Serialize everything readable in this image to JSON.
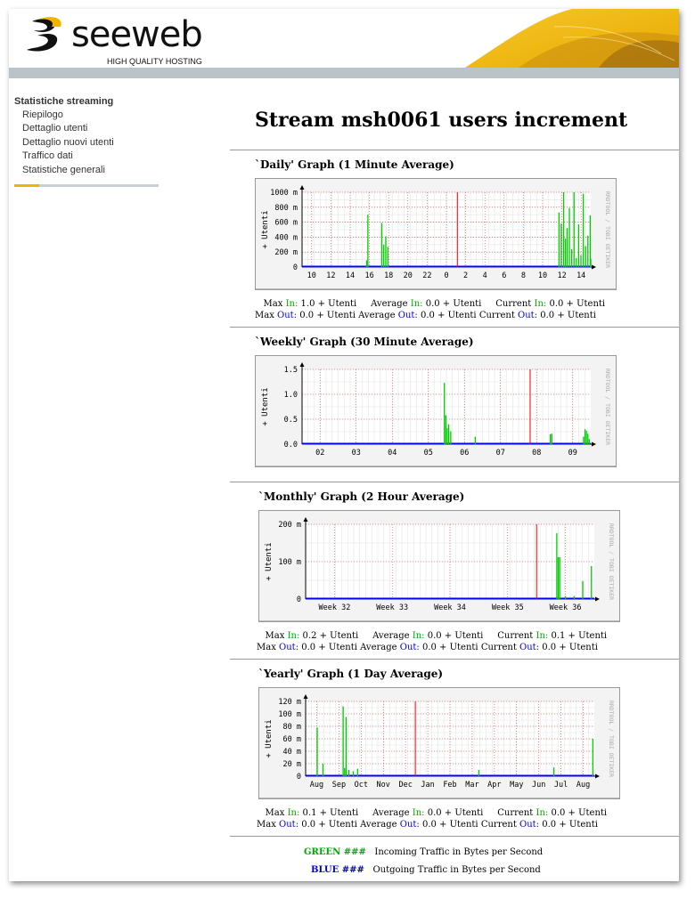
{
  "brand": {
    "name": "seeweb",
    "tagline": "HIGH QUALITY HOSTING"
  },
  "sidebar": {
    "title": "Statistiche streaming",
    "items": [
      {
        "label": "Riepilogo"
      },
      {
        "label": "Dettaglio utenti"
      },
      {
        "label": "Dettaglio nuovi utenti"
      },
      {
        "label": "Traffico dati"
      },
      {
        "label": "Statistiche generali"
      }
    ]
  },
  "page": {
    "title": "Stream msh0061 users increment"
  },
  "graphs": [
    {
      "heading": "`Daily' Graph (1 Minute Average)",
      "ylabel": "+ Utenti",
      "side_label": "RRDTOOL / TOBI OETIKER",
      "y_ticks": [
        "1000 m",
        "800 m",
        "600 m",
        "400 m",
        "200 m",
        "0"
      ],
      "x_ticks": [
        "10",
        "12",
        "14",
        "16",
        "18",
        "20",
        "22",
        "0",
        "2",
        "4",
        "6",
        "8",
        "10",
        "12",
        "14"
      ],
      "stats": {
        "max_label": "Max",
        "avg_label": "Average",
        "cur_label": "Current",
        "in_label": "In:",
        "out_label": "Out:",
        "in": {
          "max": "1.0 + Utenti",
          "avg": "0.0 + Utenti",
          "cur": "0.0 + Utenti"
        },
        "out": {
          "max": "0.0 + Utenti",
          "avg": "0.0 + Utenti",
          "cur": "0.0 + Utenti"
        }
      }
    },
    {
      "heading": "`Weekly' Graph (30 Minute Average)",
      "ylabel": "+ Utenti",
      "side_label": "RRDTOOL / TOBI OETIKER",
      "y_ticks": [
        "1.5",
        "1.0",
        "0.5",
        "0.0"
      ],
      "x_ticks": [
        "02",
        "03",
        "04",
        "05",
        "06",
        "07",
        "08",
        "09"
      ]
    },
    {
      "heading": "`Monthly' Graph (2 Hour Average)",
      "ylabel": "+ Utenti",
      "side_label": "RRDTOOL / TOBI OETIKER",
      "y_ticks": [
        "200 m",
        "100 m",
        "0"
      ],
      "x_ticks": [
        "Week 32",
        "Week 33",
        "Week 34",
        "Week 35",
        "Week 36"
      ],
      "stats": {
        "max_label": "Max",
        "avg_label": "Average",
        "cur_label": "Current",
        "in_label": "In:",
        "out_label": "Out:",
        "in": {
          "max": "0.2 + Utenti",
          "avg": "0.0 + Utenti",
          "cur": "0.1 + Utenti"
        },
        "out": {
          "max": "0.0 + Utenti",
          "avg": "0.0 + Utenti",
          "cur": "0.0 + Utenti"
        }
      }
    },
    {
      "heading": "`Yearly' Graph (1 Day Average)",
      "ylabel": "+ Utenti",
      "side_label": "RRDTOOL / TOBI OETIKER",
      "y_ticks": [
        "120 m",
        "100 m",
        "80 m",
        "60 m",
        "40 m",
        "20 m",
        "0"
      ],
      "x_ticks": [
        "Aug",
        "Sep",
        "Oct",
        "Nov",
        "Dec",
        "Jan",
        "Feb",
        "Mar",
        "Apr",
        "May",
        "Jun",
        "Jul",
        "Aug"
      ],
      "stats": {
        "max_label": "Max",
        "avg_label": "Average",
        "cur_label": "Current",
        "in_label": "In:",
        "out_label": "Out:",
        "in": {
          "max": "0.1 + Utenti",
          "avg": "0.0 + Utenti",
          "cur": "0.0 + Utenti"
        },
        "out": {
          "max": "0.0 + Utenti",
          "avg": "0.0 + Utenti",
          "cur": "0.0 + Utenti"
        }
      }
    }
  ],
  "legend": {
    "green_key": "GREEN ###",
    "green_text": "Incoming Traffic in Bytes per Second",
    "blue_key": "BLUE ###",
    "blue_text": "Outgoing Traffic in Bytes per Second"
  },
  "colors": {
    "in": "#00cc00",
    "out": "#0000ff",
    "now": "#ff0000",
    "accent": "#f0b400"
  },
  "chart_data": [
    {
      "type": "bar",
      "title": "`Daily' Graph (1 Minute Average)",
      "ylabel": "+ Utenti",
      "ylim": [
        0,
        1000
      ],
      "y_unit": "m",
      "x_labels": [
        "10",
        "12",
        "14",
        "16",
        "18",
        "20",
        "22",
        "0",
        "2",
        "4",
        "6",
        "8",
        "10",
        "12",
        "14"
      ],
      "now_x": 0.538,
      "in": [
        [
          0.224,
          90
        ],
        [
          0.228,
          700
        ],
        [
          0.276,
          590
        ],
        [
          0.283,
          300
        ],
        [
          0.29,
          410
        ],
        [
          0.297,
          270
        ],
        [
          0.89,
          730
        ],
        [
          0.898,
          580
        ],
        [
          0.906,
          1000
        ],
        [
          0.912,
          380
        ],
        [
          0.918,
          520
        ],
        [
          0.926,
          790
        ],
        [
          0.934,
          240
        ],
        [
          0.942,
          1000
        ],
        [
          0.95,
          120
        ],
        [
          0.958,
          570
        ],
        [
          0.966,
          160
        ],
        [
          0.974,
          980
        ],
        [
          0.982,
          280
        ],
        [
          0.99,
          420
        ],
        [
          0.998,
          690
        ],
        [
          1.0,
          110
        ]
      ],
      "out": [
        [
          0.0,
          0
        ],
        [
          1.0,
          0
        ]
      ]
    },
    {
      "type": "bar",
      "title": "`Weekly' Graph (30 Minute Average)",
      "ylabel": "+ Utenti",
      "ylim": [
        0,
        1.5
      ],
      "x_labels": [
        "02",
        "03",
        "04",
        "05",
        "06",
        "07",
        "08",
        "09"
      ],
      "now_x": 0.79,
      "in": [
        [
          0.493,
          1.23
        ],
        [
          0.498,
          0.58
        ],
        [
          0.503,
          0.32
        ],
        [
          0.508,
          0.4
        ],
        [
          0.515,
          0.26
        ],
        [
          0.6,
          0.15
        ],
        [
          0.86,
          0.2
        ],
        [
          0.865,
          0.21
        ],
        [
          0.975,
          0.15
        ],
        [
          0.98,
          0.3
        ],
        [
          0.985,
          0.27
        ],
        [
          0.99,
          0.21
        ],
        [
          0.995,
          0.1
        ]
      ],
      "out": [
        [
          0.0,
          0
        ],
        [
          1.0,
          0
        ]
      ]
    },
    {
      "type": "bar",
      "title": "`Monthly' Graph (2 Hour Average)",
      "ylabel": "+ Utenti",
      "ylim": [
        0,
        250
      ],
      "y_unit": "m",
      "x_labels": [
        "Week 32",
        "Week 33",
        "Week 34",
        "Week 35",
        "Week 36"
      ],
      "now_x": 0.8,
      "in": [
        [
          0.87,
          220
        ],
        [
          0.875,
          140
        ],
        [
          0.88,
          140
        ],
        [
          0.9,
          10
        ],
        [
          0.93,
          10
        ],
        [
          0.96,
          60
        ],
        [
          0.99,
          110
        ]
      ],
      "out": [
        [
          0.0,
          0
        ],
        [
          1.0,
          0
        ]
      ]
    },
    {
      "type": "bar",
      "title": "`Yearly' Graph (1 Day Average)",
      "ylabel": "+ Utenti",
      "ylim": [
        0,
        120
      ],
      "y_unit": "m",
      "x_labels": [
        "Aug",
        "Sep",
        "Oct",
        "Nov",
        "Dec",
        "Jan",
        "Feb",
        "Mar",
        "Apr",
        "May",
        "Jun",
        "Jul",
        "Aug"
      ],
      "now_x": 0.38,
      "in": [
        [
          0.04,
          78
        ],
        [
          0.06,
          20
        ],
        [
          0.13,
          112
        ],
        [
          0.135,
          13
        ],
        [
          0.14,
          95
        ],
        [
          0.15,
          10
        ],
        [
          0.165,
          8
        ],
        [
          0.18,
          12
        ],
        [
          0.6,
          10
        ],
        [
          0.86,
          14
        ],
        [
          0.995,
          60
        ]
      ],
      "out": [
        [
          0.0,
          0
        ],
        [
          1.0,
          0
        ]
      ]
    }
  ]
}
